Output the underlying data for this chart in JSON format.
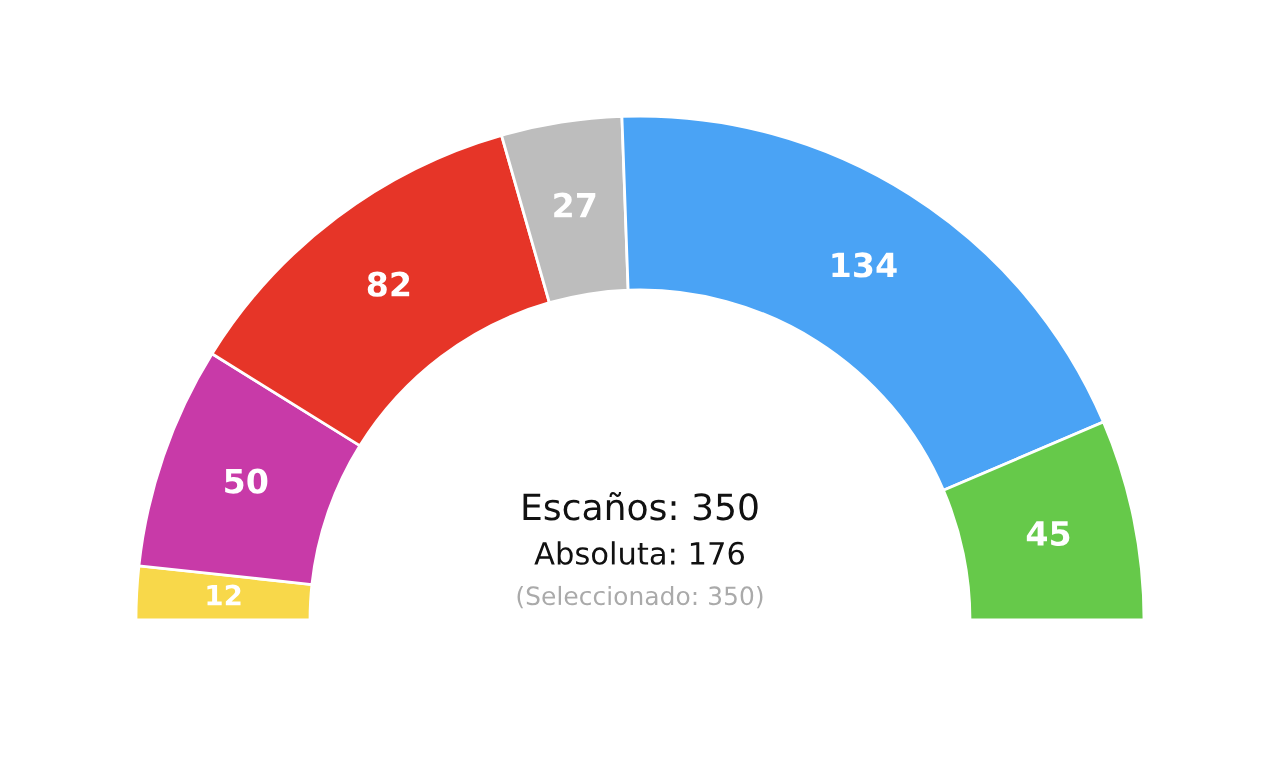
{
  "chart_data": {
    "type": "donut",
    "categories": [
      null,
      null,
      null,
      null,
      null,
      null
    ],
    "values": [
      12,
      50,
      82,
      27,
      134,
      45
    ],
    "colors": [
      "#f8d84a",
      "#c83aa8",
      "#e63528",
      "#bdbdbd",
      "#4aa3f5",
      "#66c94a"
    ],
    "data_labels": true,
    "annotations": [
      "Escaños: 350",
      "Absoluta: 176",
      "(Seleccionado: 350)"
    ]
  }
}
